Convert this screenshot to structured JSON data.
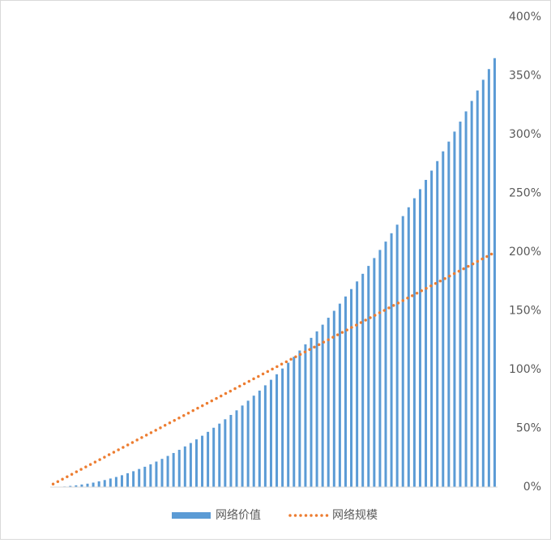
{
  "chart_data": {
    "type": "bar_line",
    "grid": false,
    "y_axis_side": "right",
    "categories": [
      null,
      null,
      null,
      null,
      null,
      null,
      null,
      null,
      null,
      null,
      null,
      null,
      null,
      null,
      null,
      null,
      null,
      null,
      null,
      null,
      null,
      null,
      null,
      null,
      null,
      null,
      null,
      null,
      null,
      null,
      null,
      null,
      null,
      null,
      null,
      null,
      null,
      null,
      null,
      null,
      null,
      null,
      null,
      null,
      null,
      null,
      null,
      null,
      null,
      null,
      null,
      null,
      null,
      null,
      null,
      null,
      null,
      null,
      null,
      null,
      null,
      null,
      null,
      null,
      null,
      null,
      null,
      null,
      null,
      null,
      null,
      null,
      null,
      null,
      null,
      null,
      null,
      null
    ],
    "series": [
      {
        "name": "网络价值",
        "type": "bar",
        "color": "#5b9bd5",
        "values": [
          0.1,
          0.2,
          0.5,
          1.0,
          1.5,
          2.2,
          2.9,
          3.8,
          4.9,
          6,
          7.3,
          8.6,
          10.1,
          11.8,
          13.5,
          15.4,
          17.3,
          19.4,
          21.7,
          24,
          26.5,
          29,
          31.7,
          34.6,
          37.5,
          40.6,
          43.7,
          47,
          50.5,
          54,
          57.7,
          61.4,
          65.3,
          69.4,
          73.5,
          77.8,
          82.1,
          86.6,
          91.3,
          96,
          100.9,
          105.8,
          110.9,
          116.2,
          121.5,
          127,
          132.5,
          138.2,
          144.1,
          150,
          156.1,
          162.2,
          168.5,
          175,
          181.5,
          188.2,
          194.9,
          201.8,
          208.9,
          216,
          223.3,
          230.6,
          238.1,
          245.8,
          253.5,
          261.4,
          269.3,
          277.4,
          285.7,
          294,
          302.5,
          311,
          319.7,
          328.6,
          337.5,
          346.6,
          355.7,
          365
        ]
      },
      {
        "name": "网络规模",
        "type": "line",
        "color": "#ed7d31",
        "values": [
          2.6,
          5.1,
          7.7,
          10.2,
          12.8,
          15.4,
          17.9,
          20.5,
          23,
          25.6,
          28.2,
          30.7,
          33.3,
          35.8,
          38.4,
          41,
          43.5,
          46.1,
          48.6,
          51.2,
          53.8,
          56.3,
          58.9,
          61.4,
          64,
          66.6,
          69.1,
          71.7,
          74.2,
          76.8,
          79.4,
          81.9,
          84.5,
          87,
          89.6,
          92.2,
          94.7,
          97.3,
          99.8,
          102.4,
          105,
          107.5,
          110.1,
          112.6,
          115.2,
          117.8,
          120.3,
          122.9,
          125.4,
          128,
          130.6,
          133.1,
          135.7,
          138.2,
          140.8,
          143.4,
          145.9,
          148.5,
          151,
          153.6,
          156.2,
          158.7,
          161.3,
          163.8,
          166.4,
          169,
          171.5,
          174.1,
          176.6,
          179.2,
          181.8,
          184.3,
          186.9,
          189.4,
          192,
          194.6,
          197.1,
          199.7
        ]
      }
    ],
    "ylim": [
      0,
      400
    ],
    "yticks": [
      {
        "value": 0,
        "label": "0%"
      },
      {
        "value": 50,
        "label": "50%"
      },
      {
        "value": 100,
        "label": "100%"
      },
      {
        "value": 150,
        "label": "150%"
      },
      {
        "value": 200,
        "label": "200%"
      },
      {
        "value": 250,
        "label": "250%"
      },
      {
        "value": 300,
        "label": "300%"
      },
      {
        "value": 350,
        "label": "350%"
      },
      {
        "value": 400,
        "label": "400%"
      }
    ]
  }
}
